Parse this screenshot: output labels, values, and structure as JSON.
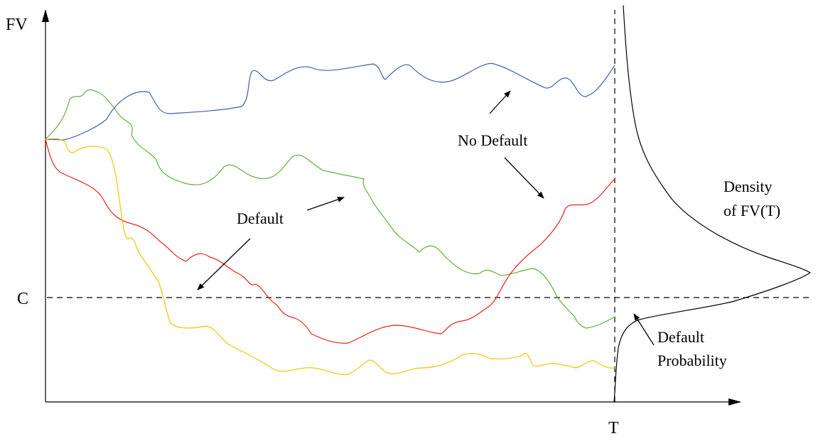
{
  "axes": {
    "y_label": "FV",
    "x_label": "T"
  },
  "threshold": {
    "label": "C"
  },
  "annotations": {
    "default": "Default",
    "no_default": "No Default",
    "density_line1": "Density",
    "density_line2": "of FV(T)",
    "default_prob_line1": "Default",
    "default_prob_line2": "Probability"
  },
  "paths": {
    "blue": "#3f5fae",
    "green": "#5fb13a",
    "red": "#e8241c",
    "yellow": "#f5c400",
    "density": "#000000"
  }
}
